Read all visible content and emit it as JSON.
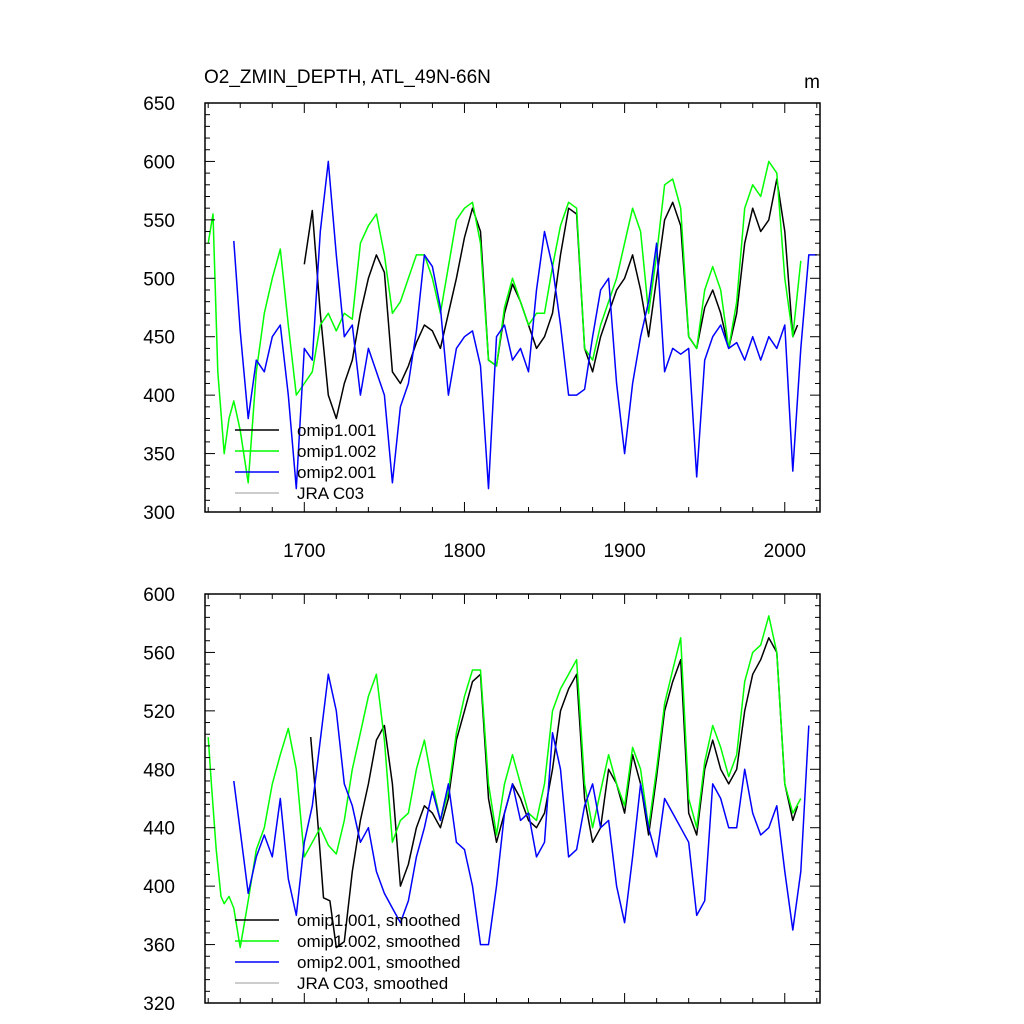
{
  "chart_data": [
    {
      "type": "line",
      "title": "O2_ZMIN_DEPTH, ATL_49N-66N",
      "units": "m",
      "xlim": [
        1638,
        2022
      ],
      "ylim": [
        300,
        650
      ],
      "xticks": [
        1700,
        1800,
        1900,
        2000
      ],
      "yticks": [
        300,
        350,
        400,
        450,
        500,
        550,
        600,
        650
      ],
      "legend_position": "bottom-left",
      "series": [
        {
          "name": "omip1.001",
          "color": "#000000",
          "x": [
            1700,
            1705,
            1710,
            1715,
            1720,
            1725,
            1730,
            1735,
            1740,
            1745,
            1750,
            1755,
            1760,
            1765,
            1770,
            1775,
            1780,
            1785,
            1790,
            1795,
            1800,
            1805,
            1810,
            1815,
            1820,
            1825,
            1830,
            1835,
            1840,
            1845,
            1850,
            1855,
            1860,
            1865,
            1870,
            1875,
            1880,
            1885,
            1890,
            1895,
            1900,
            1905,
            1910,
            1915,
            1920,
            1925,
            1930,
            1935,
            1940,
            1945,
            1950,
            1955,
            1960,
            1965,
            1970,
            1975,
            1980,
            1985,
            1990,
            1995,
            2000,
            2005,
            2008
          ],
          "y": [
            512,
            558,
            470,
            400,
            380,
            410,
            430,
            470,
            500,
            520,
            505,
            420,
            410,
            425,
            445,
            460,
            455,
            440,
            470,
            500,
            535,
            560,
            540,
            430,
            425,
            470,
            495,
            480,
            460,
            440,
            450,
            470,
            520,
            560,
            555,
            440,
            420,
            450,
            470,
            490,
            500,
            520,
            490,
            450,
            500,
            550,
            565,
            545,
            450,
            440,
            475,
            490,
            470,
            440,
            470,
            530,
            560,
            540,
            550,
            585,
            540,
            450,
            460
          ]
        },
        {
          "name": "omip1.002",
          "color": "#00ff00",
          "x": [
            1640,
            1643,
            1646,
            1650,
            1653,
            1656,
            1660,
            1665,
            1670,
            1675,
            1680,
            1685,
            1690,
            1695,
            1700,
            1705,
            1710,
            1715,
            1720,
            1725,
            1730,
            1735,
            1740,
            1745,
            1750,
            1755,
            1760,
            1765,
            1770,
            1775,
            1780,
            1785,
            1790,
            1795,
            1800,
            1805,
            1810,
            1815,
            1820,
            1825,
            1830,
            1835,
            1840,
            1845,
            1850,
            1855,
            1860,
            1865,
            1870,
            1875,
            1880,
            1885,
            1890,
            1895,
            1900,
            1905,
            1910,
            1915,
            1920,
            1925,
            1930,
            1935,
            1940,
            1945,
            1950,
            1955,
            1960,
            1965,
            1970,
            1975,
            1980,
            1985,
            1990,
            1995,
            2000,
            2005,
            2010
          ],
          "y": [
            530,
            555,
            420,
            350,
            380,
            395,
            370,
            325,
            420,
            470,
            500,
            525,
            460,
            400,
            410,
            420,
            460,
            470,
            455,
            470,
            465,
            530,
            545,
            555,
            520,
            470,
            480,
            500,
            520,
            520,
            500,
            470,
            510,
            550,
            560,
            565,
            530,
            430,
            425,
            475,
            500,
            480,
            460,
            470,
            470,
            510,
            545,
            565,
            560,
            440,
            430,
            460,
            480,
            500,
            530,
            560,
            540,
            470,
            520,
            580,
            585,
            560,
            450,
            440,
            490,
            510,
            490,
            440,
            480,
            560,
            580,
            570,
            600,
            590,
            500,
            450,
            515
          ]
        },
        {
          "name": "omip2.001",
          "color": "#0000ff",
          "x": [
            1656,
            1660,
            1665,
            1670,
            1675,
            1680,
            1685,
            1690,
            1695,
            1700,
            1705,
            1710,
            1715,
            1720,
            1725,
            1730,
            1735,
            1740,
            1745,
            1750,
            1755,
            1760,
            1765,
            1770,
            1775,
            1780,
            1785,
            1790,
            1795,
            1800,
            1805,
            1810,
            1815,
            1820,
            1825,
            1830,
            1835,
            1840,
            1845,
            1850,
            1855,
            1860,
            1865,
            1870,
            1875,
            1880,
            1885,
            1890,
            1895,
            1900,
            1905,
            1910,
            1915,
            1920,
            1925,
            1930,
            1935,
            1940,
            1945,
            1950,
            1955,
            1960,
            1965,
            1970,
            1975,
            1980,
            1985,
            1990,
            1995,
            2000,
            2005,
            2010,
            2015,
            2020
          ],
          "y": [
            532,
            455,
            380,
            430,
            420,
            450,
            460,
            400,
            320,
            440,
            430,
            540,
            600,
            520,
            450,
            460,
            400,
            440,
            420,
            400,
            325,
            390,
            410,
            455,
            520,
            510,
            475,
            400,
            440,
            450,
            455,
            425,
            320,
            450,
            460,
            430,
            440,
            420,
            490,
            540,
            510,
            460,
            400,
            400,
            405,
            450,
            490,
            500,
            410,
            350,
            410,
            450,
            480,
            530,
            420,
            440,
            435,
            440,
            330,
            430,
            450,
            460,
            440,
            445,
            430,
            450,
            430,
            450,
            440,
            460,
            335,
            440,
            520,
            520
          ]
        },
        {
          "name": "JRA C03",
          "color": "#bbbbbb",
          "x": [],
          "y": []
        }
      ]
    },
    {
      "type": "line",
      "title": "",
      "xlim": [
        1638,
        2022
      ],
      "ylim": [
        320,
        600
      ],
      "xticks": [
        1700,
        1800,
        1900,
        2000
      ],
      "yticks": [
        320,
        360,
        400,
        440,
        480,
        520,
        560,
        600
      ],
      "legend_position": "bottom-left",
      "series": [
        {
          "name": "omip1.001, smoothed",
          "color": "#000000",
          "x": [
            1704,
            1708,
            1712,
            1716,
            1720,
            1725,
            1730,
            1735,
            1740,
            1745,
            1750,
            1755,
            1760,
            1765,
            1770,
            1775,
            1780,
            1785,
            1790,
            1795,
            1800,
            1805,
            1810,
            1815,
            1820,
            1825,
            1830,
            1835,
            1840,
            1845,
            1850,
            1855,
            1860,
            1865,
            1870,
            1875,
            1880,
            1885,
            1890,
            1895,
            1900,
            1905,
            1910,
            1915,
            1920,
            1925,
            1930,
            1935,
            1940,
            1945,
            1950,
            1955,
            1960,
            1965,
            1970,
            1975,
            1980,
            1985,
            1990,
            1995,
            2000,
            2005,
            2008
          ],
          "y": [
            502,
            450,
            392,
            390,
            358,
            362,
            410,
            445,
            470,
            500,
            510,
            470,
            400,
            415,
            440,
            455,
            450,
            440,
            460,
            500,
            520,
            540,
            545,
            460,
            430,
            450,
            470,
            460,
            445,
            440,
            450,
            480,
            520,
            535,
            545,
            460,
            430,
            440,
            480,
            470,
            450,
            490,
            470,
            435,
            475,
            520,
            540,
            555,
            450,
            435,
            480,
            500,
            480,
            470,
            480,
            520,
            545,
            555,
            570,
            560,
            470,
            445,
            455
          ]
        },
        {
          "name": "omip1.002, smoothed",
          "color": "#00ff00",
          "x": [
            1640,
            1642,
            1645,
            1648,
            1650,
            1653,
            1656,
            1660,
            1665,
            1670,
            1675,
            1680,
            1685,
            1690,
            1695,
            1700,
            1705,
            1710,
            1715,
            1720,
            1725,
            1730,
            1735,
            1740,
            1745,
            1750,
            1755,
            1760,
            1765,
            1770,
            1775,
            1780,
            1785,
            1790,
            1795,
            1800,
            1805,
            1810,
            1815,
            1820,
            1825,
            1830,
            1835,
            1840,
            1845,
            1850,
            1855,
            1860,
            1865,
            1870,
            1875,
            1880,
            1885,
            1890,
            1895,
            1900,
            1905,
            1910,
            1915,
            1920,
            1925,
            1930,
            1935,
            1940,
            1945,
            1950,
            1955,
            1960,
            1965,
            1970,
            1975,
            1980,
            1985,
            1990,
            1995,
            2000,
            2005,
            2010
          ],
          "y": [
            502,
            470,
            425,
            393,
            388,
            393,
            385,
            358,
            390,
            425,
            440,
            470,
            490,
            508,
            480,
            420,
            430,
            440,
            428,
            422,
            445,
            480,
            505,
            530,
            545,
            500,
            430,
            445,
            450,
            480,
            500,
            470,
            445,
            465,
            505,
            530,
            548,
            548,
            470,
            435,
            470,
            490,
            470,
            450,
            445,
            470,
            520,
            535,
            545,
            555,
            470,
            440,
            465,
            490,
            470,
            455,
            495,
            480,
            440,
            480,
            525,
            548,
            570,
            460,
            440,
            485,
            510,
            495,
            475,
            490,
            540,
            560,
            565,
            585,
            560,
            470,
            450,
            460
          ]
        },
        {
          "name": "omip2.001, smoothed",
          "color": "#0000ff",
          "x": [
            1656,
            1660,
            1665,
            1670,
            1675,
            1680,
            1685,
            1690,
            1695,
            1700,
            1705,
            1710,
            1715,
            1720,
            1725,
            1730,
            1735,
            1740,
            1745,
            1750,
            1755,
            1760,
            1765,
            1770,
            1775,
            1780,
            1785,
            1790,
            1795,
            1800,
            1805,
            1810,
            1815,
            1820,
            1825,
            1830,
            1835,
            1840,
            1845,
            1850,
            1855,
            1860,
            1865,
            1870,
            1875,
            1880,
            1885,
            1890,
            1895,
            1900,
            1905,
            1910,
            1915,
            1920,
            1925,
            1930,
            1935,
            1940,
            1945,
            1950,
            1955,
            1960,
            1965,
            1970,
            1975,
            1980,
            1985,
            1990,
            1995,
            2000,
            2005,
            2010,
            2015
          ],
          "y": [
            472,
            438,
            395,
            420,
            435,
            420,
            460,
            405,
            380,
            430,
            455,
            500,
            545,
            520,
            470,
            455,
            430,
            440,
            410,
            395,
            385,
            375,
            390,
            420,
            440,
            465,
            445,
            470,
            430,
            425,
            400,
            360,
            360,
            400,
            450,
            470,
            445,
            450,
            420,
            430,
            505,
            480,
            420,
            425,
            455,
            470,
            440,
            445,
            400,
            375,
            420,
            470,
            440,
            420,
            460,
            450,
            440,
            430,
            380,
            390,
            470,
            460,
            440,
            440,
            480,
            450,
            435,
            440,
            455,
            410,
            370,
            410,
            510
          ]
        },
        {
          "name": "JRA C03, smoothed",
          "color": "#bbbbbb",
          "x": [],
          "y": []
        }
      ]
    }
  ]
}
